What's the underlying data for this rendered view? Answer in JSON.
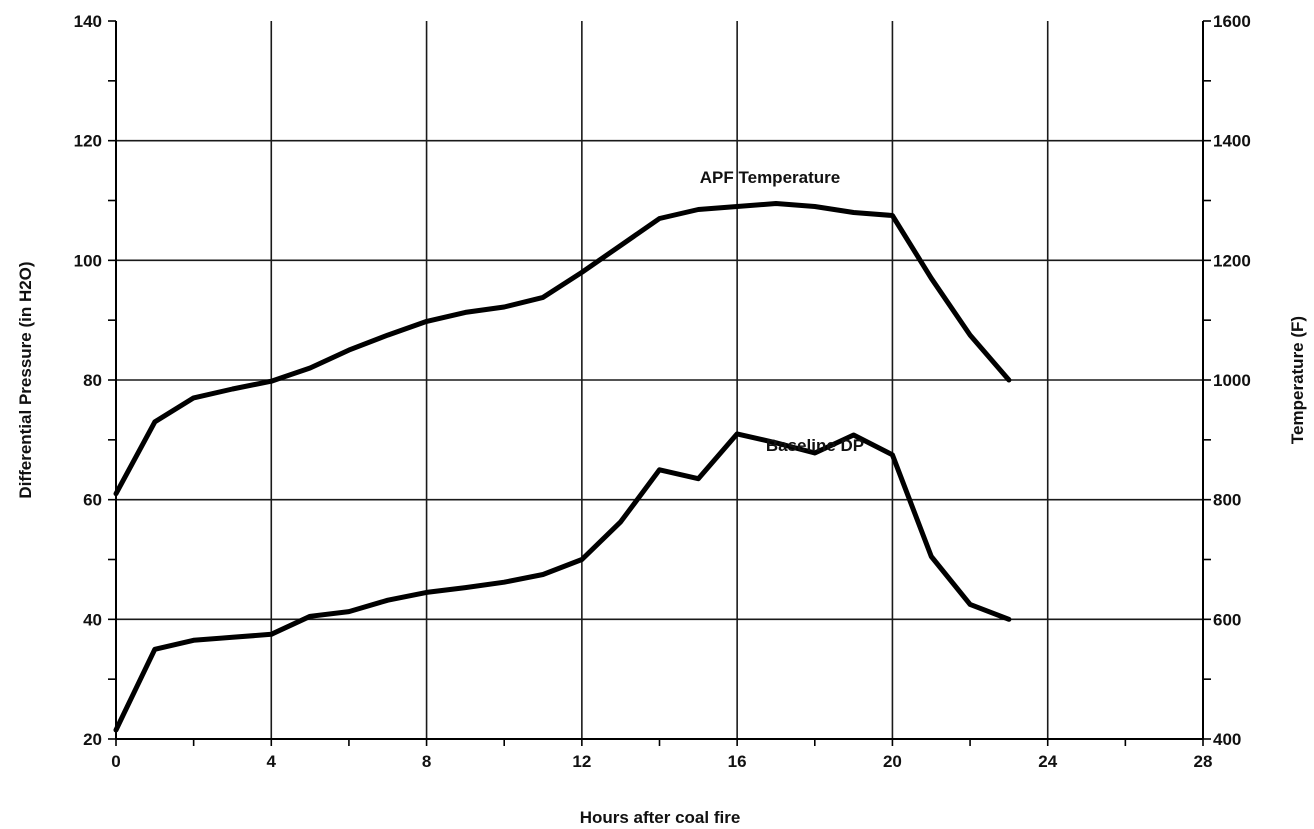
{
  "chart_data": {
    "type": "line",
    "title": "",
    "xlabel": "Hours after coal fire",
    "ylabel_left": "Differential Pressure (in H2O)",
    "ylabel_right": "Temperature (F)",
    "xlim": [
      0,
      28
    ],
    "ylim_left": [
      20,
      140
    ],
    "ylim_right": [
      400,
      1600
    ],
    "grid": true,
    "legend": "none",
    "x_ticks": [
      "0",
      "4",
      "8",
      "12",
      "16",
      "20",
      "24",
      "28"
    ],
    "y_left_ticks": [
      "20",
      "40",
      "60",
      "80",
      "100",
      "120",
      "140"
    ],
    "y_right_ticks": [
      "400",
      "600",
      "800",
      "1000",
      "1200",
      "1400",
      "1600"
    ],
    "series": [
      {
        "name": "APF Temperature",
        "axis": "right",
        "x": [
          0,
          1,
          2,
          3,
          4,
          5,
          6,
          7,
          8,
          9,
          10,
          11,
          12,
          13,
          14,
          15,
          16,
          17,
          18,
          19,
          20,
          21,
          22,
          23
        ],
        "values": [
          810,
          930,
          970,
          985,
          998,
          1020,
          1050,
          1075,
          1098,
          1113,
          1122,
          1138,
          1180,
          1225,
          1270,
          1285,
          1290,
          1295,
          1290,
          1280,
          1275,
          1170,
          1075,
          1000
        ]
      },
      {
        "name": "Baseline DP",
        "axis": "left",
        "x": [
          0,
          1,
          2,
          3,
          4,
          5,
          6,
          7,
          8,
          9,
          10,
          11,
          12,
          13,
          14,
          15,
          16,
          17,
          18,
          19,
          20,
          21,
          22,
          23
        ],
        "values": [
          21.5,
          35,
          36.5,
          37,
          37.5,
          40.5,
          41.3,
          43.2,
          44.5,
          45.3,
          46.2,
          47.5,
          50,
          56.3,
          65,
          63.5,
          71,
          69.5,
          67.8,
          70.8,
          67.5,
          50.5,
          42.5,
          40
        ]
      }
    ],
    "annotations": [
      {
        "text": "APF Temperature",
        "series": "APF Temperature"
      },
      {
        "text": "Baseline DP",
        "series": "Baseline DP"
      }
    ]
  }
}
